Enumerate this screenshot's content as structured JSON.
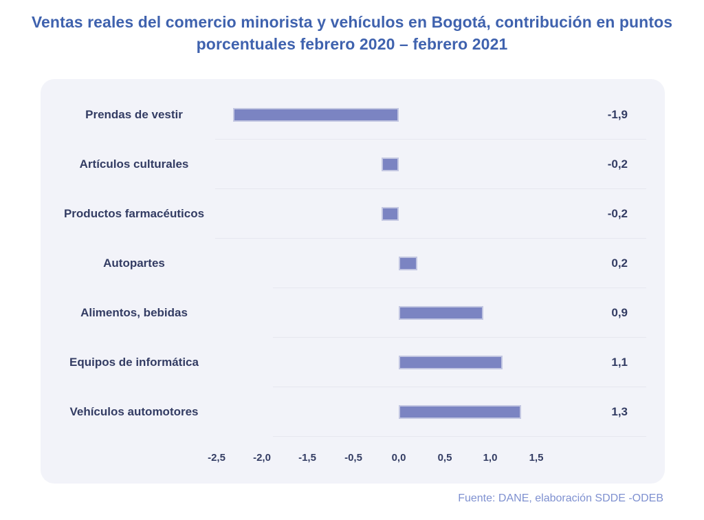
{
  "page": {
    "title_line1": "Ventas reales del comercio minorista y vehículos en Bogotá, contribución en puntos",
    "title_line2": "porcentuales febrero 2020 – febrero 2021",
    "source": "Fuente: DANE, elaboración SDDE -ODEB"
  },
  "colors": {
    "title_text": "#3f62ae",
    "body_text": "#333c63",
    "bar_fill": "#7b84c2",
    "bar_border": "#c3c7e2",
    "panel_background": "#f2f3f9",
    "row_separator": "#e6e7ef",
    "source_text": "#7e90d0"
  },
  "chart_data": {
    "type": "bar",
    "orientation": "horizontal",
    "title": "Ventas reales del comercio minorista y vehículos en Bogotá, contribución en puntos porcentuales febrero 2020 – febrero 2021",
    "categories": [
      "Prendas de vestir",
      "Artículos culturales",
      "Productos farmacéuticos",
      "Autopartes",
      "Alimentos, bebidas",
      "Equipos de informática",
      "Vehículos automotores"
    ],
    "values": [
      -1.9,
      -0.2,
      -0.2,
      0.2,
      0.9,
      1.1,
      1.3
    ],
    "value_labels": [
      "-1,9",
      "-0,2",
      "-0,2",
      "0,2",
      "0,9",
      "1,1",
      "1,3"
    ],
    "x_tick_labels": [
      "-2,5",
      "-2,0",
      "-1,5",
      "-0,5",
      "0,0",
      "0,5",
      "1,0",
      "1,5"
    ],
    "xlim": [
      -2.5,
      1.5
    ],
    "unit": "puntos porcentuales",
    "grid": "horizontal row separators only, no vertical gridlines",
    "legend": "none",
    "source": "Fuente: DANE, elaboración SDDE -ODEB"
  }
}
